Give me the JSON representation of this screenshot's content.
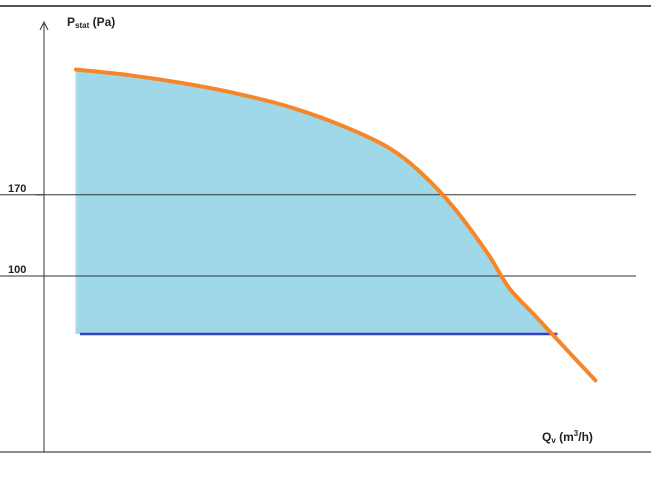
{
  "chart_data": {
    "type": "area",
    "title": "",
    "xlabel": {
      "main": "Q",
      "sub": "v",
      "unit_open": " (m",
      "sup": "3",
      "unit_close": "/h)"
    },
    "ylabel": {
      "main": "P",
      "sub": "stat",
      "unit": " (Pa)"
    },
    "yticks": [
      {
        "value": 170,
        "label": "170"
      },
      {
        "value": 100,
        "label": "100"
      }
    ],
    "ylim": [
      0,
      300
    ],
    "xlim": [
      0,
      100
    ],
    "grid": {
      "horizontal_at": [
        170,
        100
      ]
    },
    "series": [
      {
        "kind": "curve",
        "x": [
          0,
          10,
          20,
          30,
          40,
          50,
          58,
          64,
          70,
          76,
          80,
          84,
          88,
          92,
          96
        ],
        "y": [
          278,
          273,
          266,
          257,
          245,
          228,
          210,
          188,
          158,
          120,
          90,
          70,
          50,
          30,
          10
        ],
        "color": "#f5872a"
      },
      {
        "kind": "baseline",
        "y": 50,
        "x": [
          0,
          89
        ],
        "color": "#3a3fc4"
      }
    ],
    "fill_color": "#9fd8e8"
  }
}
